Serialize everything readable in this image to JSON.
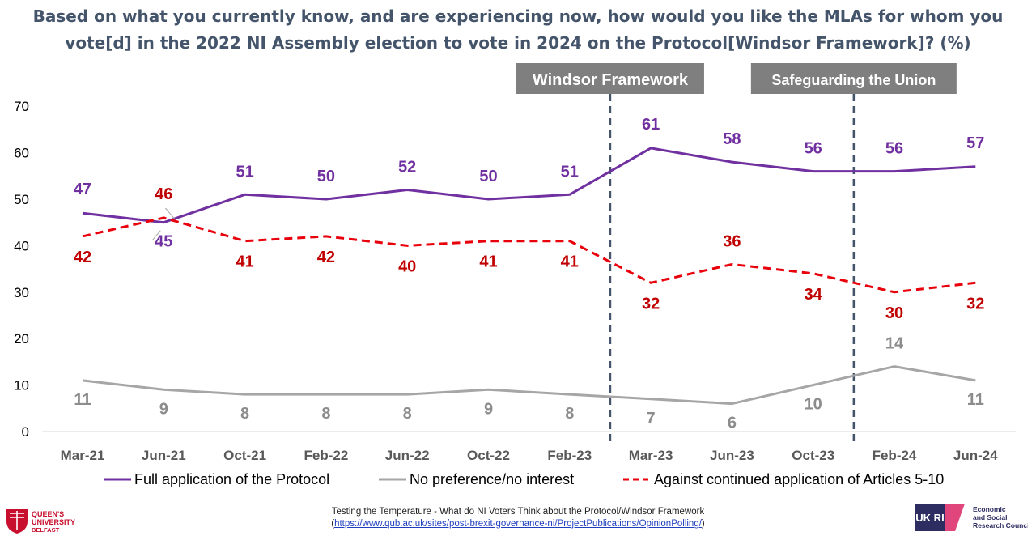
{
  "chart_data": {
    "type": "line",
    "title": "Based on what you currently know, and are experiencing now, how would you like the MLAs for whom you vote[d] in the 2022 NI Assembly election to vote in 2024 on the Protocol[Windsor Framework]? (%)",
    "categories": [
      "Mar-21",
      "Jun-21",
      "Oct-21",
      "Feb-22",
      "Jun-22",
      "Oct-22",
      "Feb-23",
      "Mar-23",
      "Jun-23",
      "Oct-23",
      "Feb-24",
      "Jun-24"
    ],
    "ylim": [
      0,
      70
    ],
    "yticks": [
      0,
      10,
      20,
      30,
      40,
      50,
      60,
      70
    ],
    "xlabel": "",
    "ylabel": "",
    "grid": false,
    "legend_position": "bottom",
    "series": [
      {
        "name": "Full application of the Protocol",
        "color": "#7030A0",
        "style": "solid",
        "values": [
          47,
          45,
          51,
          50,
          52,
          50,
          51,
          61,
          58,
          56,
          56,
          57
        ]
      },
      {
        "name": "No preference/no interest",
        "color": "#A6A6A6",
        "style": "solid",
        "values": [
          11,
          9,
          8,
          8,
          8,
          9,
          8,
          7,
          6,
          10,
          14,
          11
        ]
      },
      {
        "name": "Against continued application of Articles 5-10",
        "color": "#E8000B",
        "style": "dashed",
        "values": [
          42,
          46,
          41,
          42,
          40,
          41,
          41,
          32,
          36,
          34,
          30,
          32
        ]
      }
    ],
    "label_colors": {
      "Full application of the Protocol": "#7030A0",
      "No preference/no interest": "#8C8C8C",
      "Against continued application of Articles 5-10": "#C00000"
    },
    "annotations": [
      {
        "label": "Windsor Framework",
        "between": [
          "Feb-23",
          "Mar-23"
        ]
      },
      {
        "label": "Safeguarding the Union",
        "between": [
          "Oct-23",
          "Feb-24"
        ]
      }
    ]
  },
  "footer": {
    "caption": "Testing the Temperature - What do NI Voters Think about the Protocol/Windsor Framework",
    "link_open": "(",
    "link": "https://www.qub.ac.uk/sites/post-brexit-governance-ni/ProjectPublications/OpinionPolling/",
    "link_close": ")"
  },
  "logos": {
    "qub": [
      "QUEEN'S",
      "UNIVERSITY",
      "BELFAST"
    ],
    "ukri": {
      "mark": "UK RI",
      "text": [
        "Economic",
        "and Social",
        "Research Council"
      ]
    }
  },
  "colors": {
    "title": "#44546A",
    "annotation_bg": "#7F7F7F",
    "divider": "#44546A",
    "axis": "#D9D9D9"
  }
}
